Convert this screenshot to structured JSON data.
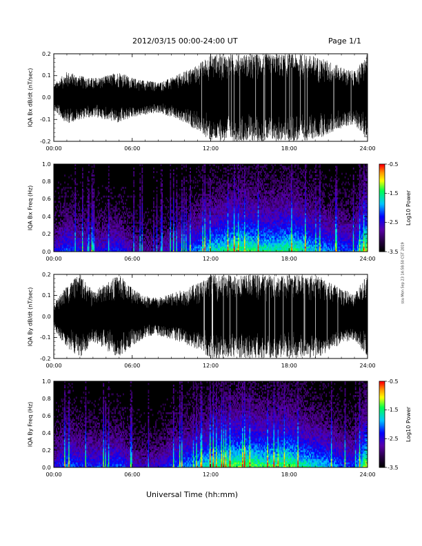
{
  "header": {
    "date_range": "2012/03/15  00:00-24:00 UT",
    "page": "Page 1/1"
  },
  "footer": {
    "xlabel": "Universal Time (hh:mm)",
    "side_note": "ssu Mon Sep 23 14:58:50 CST 2019"
  },
  "colorbar": {
    "label": "Log10 Power",
    "ticks": [
      "-0.5",
      "-1.5",
      "-2.5",
      "-3.5"
    ],
    "colors": [
      "#ff0000",
      "#ff8800",
      "#ffff00",
      "#00ff00",
      "#00ffff",
      "#0000ff",
      "#8000c0",
      "#000000"
    ]
  },
  "chart_data": [
    {
      "type": "line",
      "ylabel": "IQA Bx dB/dt (nT/sec)",
      "x_ticks": [
        "00:00",
        "06:00",
        "12:00",
        "18:00",
        "24:00"
      ],
      "y_ticks": [
        "0.2",
        "0.1",
        "0.0",
        "-0.1",
        "-0.2"
      ],
      "xlim": [
        0,
        24
      ],
      "ylim": [
        -0.2,
        0.2
      ],
      "envelope": {
        "hours": [
          0,
          1,
          2,
          3,
          4,
          5,
          6,
          7,
          8,
          9,
          10,
          11,
          12,
          13,
          14,
          15,
          16,
          17,
          18,
          19,
          20,
          21,
          22,
          23,
          24
        ],
        "amplitude": [
          0.06,
          0.12,
          0.1,
          0.09,
          0.1,
          0.12,
          0.09,
          0.08,
          0.07,
          0.09,
          0.12,
          0.15,
          0.2,
          0.2,
          0.2,
          0.2,
          0.2,
          0.2,
          0.2,
          0.2,
          0.19,
          0.17,
          0.14,
          0.12,
          0.2
        ]
      }
    },
    {
      "type": "heatmap",
      "ylabel": "IQA Bx Freq (Hz)",
      "x_ticks": [
        "00:00",
        "06:00",
        "12:00",
        "18:00",
        "24:00"
      ],
      "y_ticks": [
        "1.0",
        "0.8",
        "0.6",
        "0.4",
        "0.2",
        "0.0"
      ],
      "xlim": [
        0,
        24
      ],
      "ylim": [
        0,
        1.0
      ],
      "zlim": [
        -3.5,
        -0.5
      ],
      "activity": {
        "hours": [
          0,
          1,
          2,
          3,
          4,
          5,
          6,
          7,
          8,
          9,
          10,
          11,
          12,
          13,
          14,
          15,
          16,
          17,
          18,
          19,
          20,
          21,
          22,
          23,
          24
        ],
        "level": [
          0.35,
          0.5,
          0.4,
          0.35,
          0.4,
          0.45,
          0.3,
          0.25,
          0.25,
          0.35,
          0.45,
          0.55,
          0.65,
          0.7,
          0.75,
          0.75,
          0.7,
          0.7,
          0.75,
          0.7,
          0.6,
          0.55,
          0.5,
          0.45,
          0.9
        ]
      }
    },
    {
      "type": "line",
      "ylabel": "IQA By dB/dt (nT/sec)",
      "x_ticks": [
        "00:00",
        "06:00",
        "12:00",
        "18:00",
        "24:00"
      ],
      "y_ticks": [
        "0.2",
        "0.1",
        "0.0",
        "-0.1",
        "-0.2"
      ],
      "xlim": [
        0,
        24
      ],
      "ylim": [
        -0.2,
        0.2
      ],
      "envelope": {
        "hours": [
          0,
          1,
          2,
          3,
          4,
          5,
          6,
          7,
          8,
          9,
          10,
          11,
          12,
          13,
          14,
          15,
          16,
          17,
          18,
          19,
          20,
          21,
          22,
          23,
          24
        ],
        "amplitude": [
          0.06,
          0.15,
          0.2,
          0.12,
          0.16,
          0.2,
          0.14,
          0.1,
          0.09,
          0.11,
          0.13,
          0.16,
          0.2,
          0.2,
          0.2,
          0.2,
          0.2,
          0.2,
          0.2,
          0.2,
          0.2,
          0.17,
          0.13,
          0.11,
          0.2
        ]
      }
    },
    {
      "type": "heatmap",
      "ylabel": "IQA By Freq (Hz)",
      "x_ticks": [
        "00:00",
        "06:00",
        "12:00",
        "18:00",
        "24:00"
      ],
      "y_ticks": [
        "1.0",
        "0.8",
        "0.6",
        "0.4",
        "0.2",
        "0.0"
      ],
      "xlim": [
        0,
        24
      ],
      "ylim": [
        0,
        1.0
      ],
      "zlim": [
        -3.5,
        -0.5
      ],
      "activity": {
        "hours": [
          0,
          1,
          2,
          3,
          4,
          5,
          6,
          7,
          8,
          9,
          10,
          11,
          12,
          13,
          14,
          15,
          16,
          17,
          18,
          19,
          20,
          21,
          22,
          23,
          24
        ],
        "level": [
          0.35,
          0.55,
          0.45,
          0.45,
          0.45,
          0.5,
          0.35,
          0.3,
          0.35,
          0.45,
          0.55,
          0.6,
          0.7,
          0.75,
          0.8,
          0.8,
          0.75,
          0.75,
          0.8,
          0.7,
          0.65,
          0.6,
          0.5,
          0.45,
          0.9
        ]
      }
    }
  ]
}
